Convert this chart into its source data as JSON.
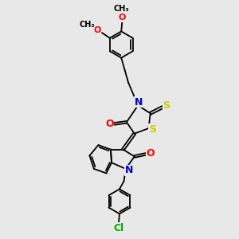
{
  "bg_color": "#e8e8e8",
  "atom_colors": {
    "C": "#000000",
    "N": "#0000cc",
    "O": "#ff0000",
    "S": "#cccc00",
    "Cl": "#00aa00"
  },
  "bond_color": "#000000",
  "bond_lw": 1.3,
  "font_size": 8.5
}
